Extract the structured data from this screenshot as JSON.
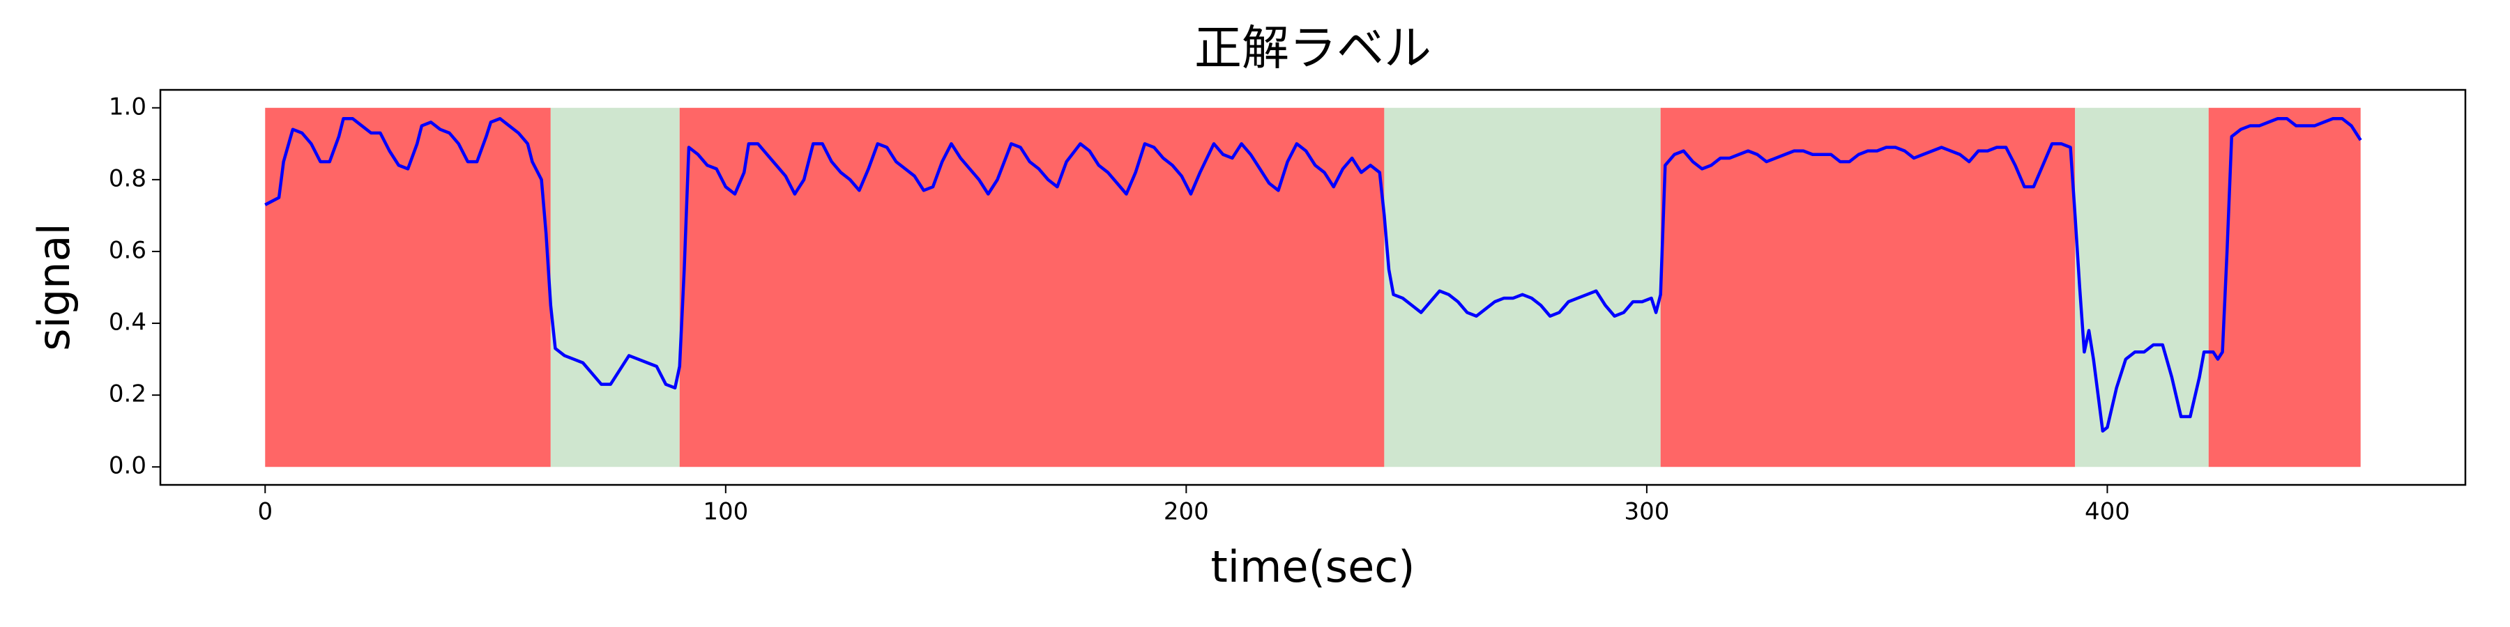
{
  "chart_data": {
    "type": "line",
    "title": "正解ラベル",
    "x_label": "time(sec)",
    "y_label": "signal",
    "xlim": [
      -22.75,
      477.75
    ],
    "ylim": [
      -0.05,
      1.05
    ],
    "xticks": [
      0,
      100,
      200,
      300,
      400
    ],
    "yticks": [
      {
        "value": 0,
        "label": "0.0"
      },
      {
        "value": 0.2,
        "label": "0.2"
      },
      {
        "value": 0.4,
        "label": "0.4"
      },
      {
        "value": 0.6,
        "label": "0.6"
      },
      {
        "value": 0.8,
        "label": "0.8"
      },
      {
        "value": 1,
        "label": "1.0"
      }
    ],
    "grid": false,
    "region_y": [
      0,
      1
    ],
    "regions": [
      {
        "start": 0,
        "end": 62,
        "color": "#ff6666"
      },
      {
        "start": 62,
        "end": 90,
        "color": "#cfe6cf"
      },
      {
        "start": 90,
        "end": 243,
        "color": "#ff6666"
      },
      {
        "start": 243,
        "end": 303,
        "color": "#cfe6cf"
      },
      {
        "start": 303,
        "end": 393,
        "color": "#ff6666"
      },
      {
        "start": 393,
        "end": 422,
        "color": "#cfe6cf"
      },
      {
        "start": 422,
        "end": 455,
        "color": "#ff6666"
      }
    ],
    "series": [
      {
        "color": "#0000ff",
        "x": [
          0,
          3,
          4,
          6,
          8,
          10,
          12,
          14,
          16,
          17,
          19,
          21,
          23,
          25,
          27,
          29,
          31,
          33,
          34,
          36,
          38,
          40,
          42,
          44,
          46,
          48,
          49,
          51,
          53,
          55,
          57,
          58,
          60,
          61,
          62,
          63,
          65,
          67,
          69,
          71,
          73,
          75,
          77,
          79,
          81,
          83,
          85,
          87,
          89,
          90,
          91,
          92,
          94,
          96,
          98,
          100,
          102,
          104,
          105,
          107,
          109,
          111,
          113,
          115,
          117,
          119,
          121,
          123,
          125,
          127,
          129,
          131,
          133,
          135,
          137,
          139,
          141,
          143,
          145,
          147,
          149,
          151,
          153,
          155,
          157,
          159,
          162,
          164,
          166,
          168,
          170,
          172,
          174,
          177,
          179,
          181,
          183,
          185,
          187,
          189,
          191,
          193,
          195,
          197,
          199,
          201,
          203,
          206,
          208,
          210,
          212,
          214,
          216,
          218,
          220,
          222,
          224,
          226,
          228,
          230,
          232,
          234,
          236,
          238,
          240,
          242,
          243,
          244,
          245,
          247,
          249,
          251,
          253,
          255,
          257,
          259,
          261,
          263,
          265,
          267,
          269,
          271,
          273,
          275,
          277,
          279,
          281,
          283,
          285,
          287,
          289,
          291,
          293,
          295,
          297,
          299,
          301,
          302,
          303,
          304,
          306,
          308,
          310,
          312,
          314,
          316,
          318,
          320,
          322,
          324,
          326,
          328,
          330,
          332,
          334,
          336,
          338,
          340,
          342,
          344,
          346,
          348,
          350,
          352,
          354,
          356,
          358,
          360,
          362,
          364,
          366,
          368,
          370,
          372,
          374,
          376,
          378,
          380,
          382,
          384,
          386,
          388,
          390,
          392,
          393,
          394,
          395,
          396,
          397,
          398,
          399,
          400,
          402,
          404,
          406,
          408,
          410,
          412,
          414,
          416,
          418,
          420,
          421,
          423,
          424,
          425,
          426,
          427,
          429,
          431,
          433,
          435,
          437,
          439,
          441,
          443,
          445,
          447,
          449,
          451,
          453,
          454,
          455
        ],
        "values": [
          0.73,
          0.75,
          0.85,
          0.94,
          0.93,
          0.9,
          0.85,
          0.85,
          0.92,
          0.97,
          0.97,
          0.95,
          0.93,
          0.93,
          0.88,
          0.84,
          0.83,
          0.9,
          0.95,
          0.96,
          0.94,
          0.93,
          0.9,
          0.85,
          0.85,
          0.92,
          0.96,
          0.97,
          0.95,
          0.93,
          0.9,
          0.85,
          0.8,
          0.65,
          0.45,
          0.33,
          0.31,
          0.3,
          0.29,
          0.26,
          0.23,
          0.23,
          0.27,
          0.31,
          0.3,
          0.29,
          0.28,
          0.23,
          0.22,
          0.28,
          0.55,
          0.89,
          0.87,
          0.84,
          0.83,
          0.78,
          0.76,
          0.82,
          0.9,
          0.9,
          0.87,
          0.84,
          0.81,
          0.76,
          0.8,
          0.9,
          0.9,
          0.85,
          0.82,
          0.8,
          0.77,
          0.83,
          0.9,
          0.89,
          0.85,
          0.83,
          0.81,
          0.77,
          0.78,
          0.85,
          0.9,
          0.86,
          0.83,
          0.8,
          0.76,
          0.8,
          0.9,
          0.89,
          0.85,
          0.83,
          0.8,
          0.78,
          0.85,
          0.9,
          0.88,
          0.84,
          0.82,
          0.79,
          0.76,
          0.82,
          0.9,
          0.89,
          0.86,
          0.84,
          0.81,
          0.76,
          0.82,
          0.9,
          0.87,
          0.86,
          0.9,
          0.87,
          0.83,
          0.79,
          0.77,
          0.85,
          0.9,
          0.88,
          0.84,
          0.82,
          0.78,
          0.83,
          0.86,
          0.82,
          0.84,
          0.82,
          0.7,
          0.55,
          0.48,
          0.47,
          0.45,
          0.43,
          0.46,
          0.49,
          0.48,
          0.46,
          0.43,
          0.42,
          0.44,
          0.46,
          0.47,
          0.47,
          0.48,
          0.47,
          0.45,
          0.42,
          0.43,
          0.46,
          0.47,
          0.48,
          0.49,
          0.45,
          0.42,
          0.43,
          0.46,
          0.46,
          0.47,
          0.43,
          0.48,
          0.84,
          0.87,
          0.88,
          0.85,
          0.83,
          0.84,
          0.86,
          0.86,
          0.87,
          0.88,
          0.87,
          0.85,
          0.86,
          0.87,
          0.88,
          0.88,
          0.87,
          0.87,
          0.87,
          0.85,
          0.85,
          0.87,
          0.88,
          0.88,
          0.89,
          0.89,
          0.88,
          0.86,
          0.87,
          0.88,
          0.89,
          0.88,
          0.87,
          0.85,
          0.88,
          0.88,
          0.89,
          0.89,
          0.84,
          0.78,
          0.78,
          0.84,
          0.9,
          0.9,
          0.89,
          0.7,
          0.5,
          0.32,
          0.38,
          0.3,
          0.2,
          0.1,
          0.11,
          0.22,
          0.3,
          0.32,
          0.32,
          0.34,
          0.34,
          0.25,
          0.14,
          0.14,
          0.25,
          0.32,
          0.32,
          0.3,
          0.32,
          0.6,
          0.92,
          0.94,
          0.95,
          0.95,
          0.96,
          0.97,
          0.97,
          0.95,
          0.95,
          0.95,
          0.96,
          0.97,
          0.97,
          0.95,
          0.93,
          0.91
        ]
      }
    ]
  }
}
